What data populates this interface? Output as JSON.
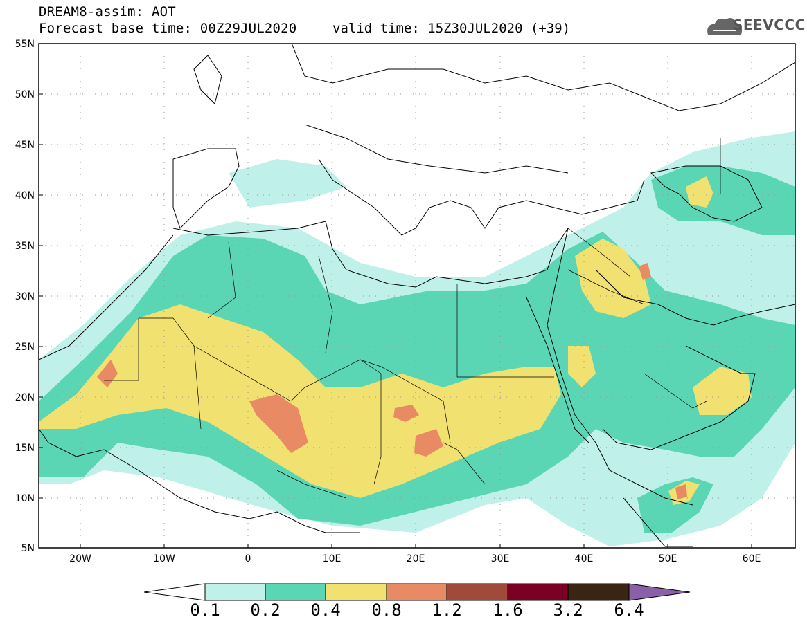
{
  "header": {
    "title_line1": "DREAM8-assim: AOT",
    "title_line2": "Forecast base time: 00Z29JUL2020",
    "valid_time": "valid time: 15Z30JUL2020 (+39)",
    "logo_text": "SEEVCCC"
  },
  "axes": {
    "lat_labels": [
      "55N",
      "50N",
      "45N",
      "40N",
      "35N",
      "30N",
      "25N",
      "20N",
      "15N",
      "10N",
      "5N"
    ],
    "lat_values": [
      55,
      50,
      45,
      40,
      35,
      30,
      25,
      20,
      15,
      10,
      5
    ],
    "lon_labels": [
      "20W",
      "10W",
      "0",
      "10E",
      "20E",
      "30E",
      "40E",
      "50E",
      "60E"
    ],
    "lon_values": [
      -20,
      -10,
      0,
      10,
      20,
      30,
      40,
      50,
      60
    ],
    "lon_range": [
      -25,
      65
    ],
    "lat_range": [
      5,
      55
    ],
    "grid": true
  },
  "colorbar": {
    "labels": [
      "0.1",
      "0.2",
      "0.4",
      "0.8",
      "1.2",
      "1.6",
      "3.2",
      "6.4"
    ],
    "colors": [
      "#c0f0ea",
      "#5ad6b4",
      "#f1e170",
      "#e88a64",
      "#a04a3c",
      "#7a0024",
      "#3a2414",
      "#8a60a8"
    ]
  }
}
